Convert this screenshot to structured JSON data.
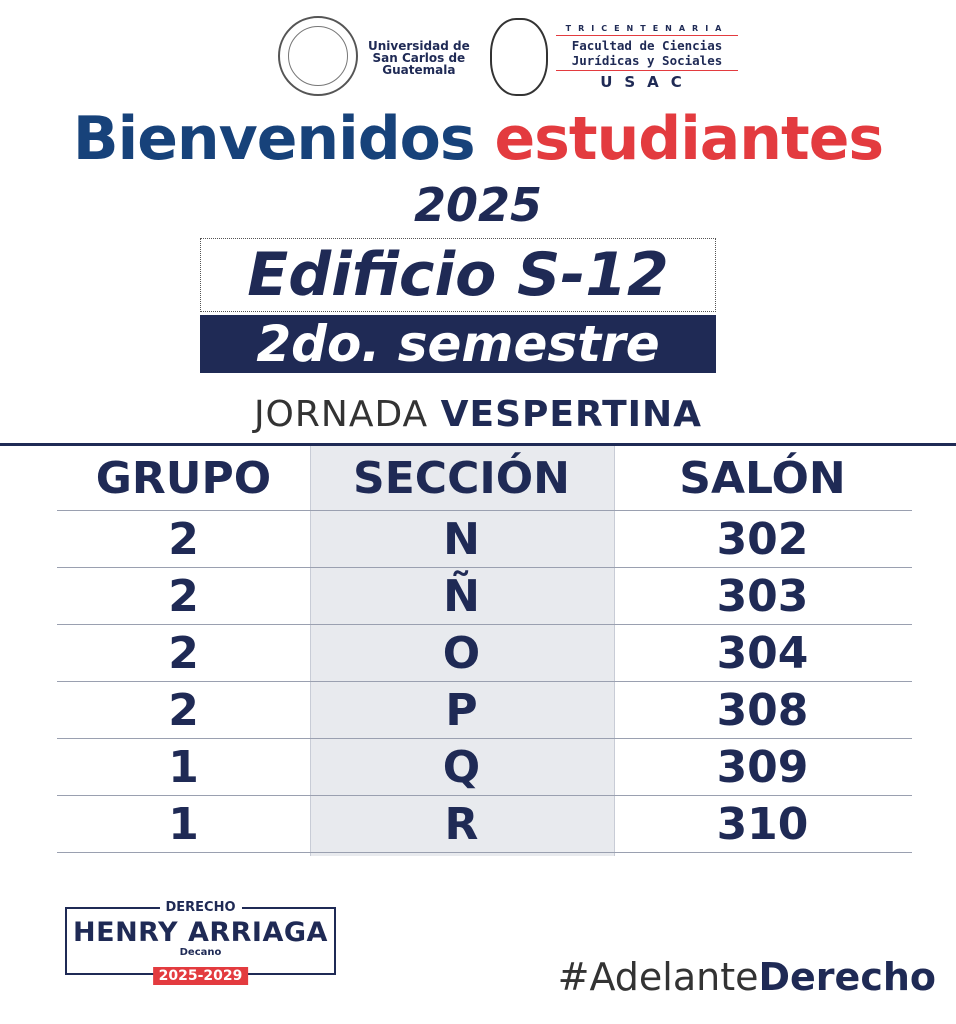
{
  "header": {
    "university": [
      "Universidad de",
      "San Carlos de",
      "Guatemala"
    ],
    "faculty_tag": "TRICENTENARIA",
    "faculty": [
      "Facultad de Ciencias",
      "Jurídicas y Sociales"
    ],
    "faculty_abbr": "USAC",
    "seal_text": "FACULTAD DE CIENCIAS JURIDICAS Y SOCIALES"
  },
  "title": {
    "part1": "Bienvenidos",
    "part2": "estudiantes",
    "year": "2025"
  },
  "building": "Edificio S-12",
  "semester": "2do. semestre",
  "shift": {
    "label": "JORNADA",
    "value": "VESPERTINA"
  },
  "table": {
    "headers": [
      "GRUPO",
      "SECCIÓN",
      "SALÓN"
    ],
    "rows": [
      [
        "2",
        "N",
        "302"
      ],
      [
        "2",
        "Ñ",
        "303"
      ],
      [
        "2",
        "O",
        "304"
      ],
      [
        "2",
        "P",
        "308"
      ],
      [
        "1",
        "Q",
        "309"
      ],
      [
        "1",
        "R",
        "310"
      ]
    ]
  },
  "footer": {
    "dean_label": "DERECHO",
    "dean_name": "HENRY ARRIAGA",
    "dean_role": "Decano",
    "dean_years": "2025-2029",
    "hashtag_light": "#Adelante",
    "hashtag_bold": "Derecho"
  },
  "colors": {
    "navy": "#1f2a55",
    "blue": "#17427a",
    "red": "#e33b3f",
    "column_gray": "#e8eaee"
  }
}
